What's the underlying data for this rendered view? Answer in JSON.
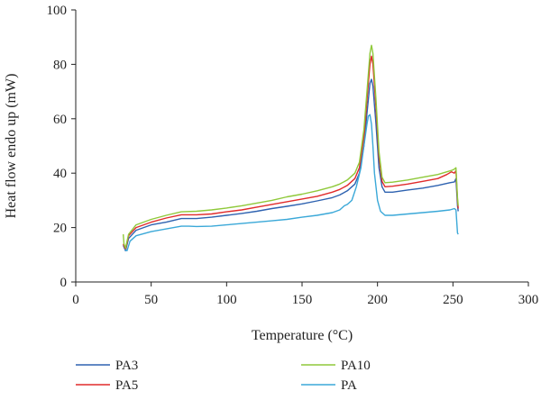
{
  "chart_data": {
    "type": "line",
    "xlabel": "Temperature (°C)",
    "ylabel": "Heat flow endo up (mW)",
    "xlim": [
      0,
      300
    ],
    "ylim": [
      0,
      100
    ],
    "xticks": [
      0,
      50,
      100,
      150,
      200,
      250,
      300
    ],
    "yticks": [
      0,
      20,
      40,
      60,
      80,
      100
    ],
    "grid": false,
    "legend_position": "bottom",
    "series": [
      {
        "name": "PA3",
        "color": "#2e62b0",
        "x": [
          31.5,
          33,
          35,
          40,
          50,
          60,
          70,
          80,
          90,
          100,
          110,
          120,
          130,
          140,
          150,
          160,
          170,
          175,
          180,
          185,
          188,
          191,
          193,
          195,
          196,
          197,
          199,
          201,
          203,
          205,
          210,
          220,
          230,
          240,
          248,
          251,
          252,
          253,
          253.5
        ],
        "y": [
          13.5,
          11.5,
          16,
          19,
          21,
          22,
          23.3,
          23.3,
          23.8,
          24.5,
          25.2,
          26,
          27,
          27.8,
          28.7,
          29.8,
          31,
          32,
          33.5,
          36,
          40,
          50,
          62,
          73,
          74.5,
          72,
          58,
          42,
          35,
          33,
          33,
          33.8,
          34.5,
          35.5,
          36.5,
          36.8,
          38,
          28,
          26
        ]
      },
      {
        "name": "PA5",
        "color": "#e02b2b",
        "x": [
          31.5,
          33,
          35,
          40,
          50,
          60,
          70,
          80,
          90,
          100,
          110,
          120,
          130,
          140,
          150,
          160,
          170,
          175,
          180,
          185,
          188,
          191,
          193,
          195,
          196,
          197,
          199,
          201,
          203,
          205,
          210,
          220,
          230,
          240,
          246,
          249,
          251,
          252,
          253,
          253.5
        ],
        "y": [
          14,
          12,
          17,
          20,
          22,
          23.5,
          24.7,
          24.7,
          25,
          25.8,
          26.5,
          27.5,
          28.5,
          29.5,
          30.5,
          31.5,
          33,
          34,
          35.5,
          38,
          42,
          53,
          67,
          80,
          83,
          80,
          64,
          46,
          37,
          35,
          35.2,
          36,
          37,
          38,
          39.5,
          40.5,
          40,
          41,
          30,
          27
        ]
      },
      {
        "name": "PA10",
        "color": "#8fc93a",
        "x": [
          31.5,
          32,
          33,
          35,
          40,
          50,
          60,
          70,
          80,
          90,
          100,
          110,
          120,
          130,
          140,
          150,
          160,
          170,
          175,
          180,
          185,
          188,
          191,
          193,
          195,
          196,
          197,
          199,
          201,
          203,
          205,
          210,
          220,
          230,
          240,
          246,
          249,
          251,
          252,
          253,
          253.5
        ],
        "y": [
          17.5,
          14,
          12.5,
          17.5,
          21,
          23,
          24.5,
          25.8,
          26,
          26.5,
          27.2,
          28,
          29,
          30,
          31.3,
          32.3,
          33.5,
          35,
          36,
          37.5,
          40,
          44,
          56,
          70,
          84,
          87,
          84,
          67,
          48,
          38.5,
          36.5,
          36.7,
          37.5,
          38.5,
          39.5,
          40.5,
          41,
          41.5,
          42,
          31,
          28
        ]
      },
      {
        "name": "PA",
        "color": "#3aa8d8",
        "x": [
          32.5,
          34,
          36,
          40,
          50,
          60,
          70,
          75,
          80,
          90,
          100,
          110,
          120,
          130,
          140,
          150,
          160,
          170,
          175,
          178,
          180,
          183,
          186,
          189,
          191,
          193,
          194,
          195,
          196,
          197,
          198,
          200,
          202,
          205,
          210,
          220,
          230,
          240,
          248,
          251,
          252,
          253,
          253.5
        ],
        "y": [
          12,
          11.5,
          15,
          17,
          18.5,
          19.5,
          20.5,
          20.5,
          20.4,
          20.5,
          21,
          21.5,
          22,
          22.5,
          23,
          23.8,
          24.5,
          25.5,
          26.5,
          28,
          28.5,
          30,
          35,
          42,
          50,
          58,
          61,
          61.5,
          58,
          50,
          40,
          30,
          26,
          24.5,
          24.5,
          25,
          25.5,
          26,
          26.5,
          27,
          26.5,
          18,
          17.5
        ]
      }
    ]
  }
}
